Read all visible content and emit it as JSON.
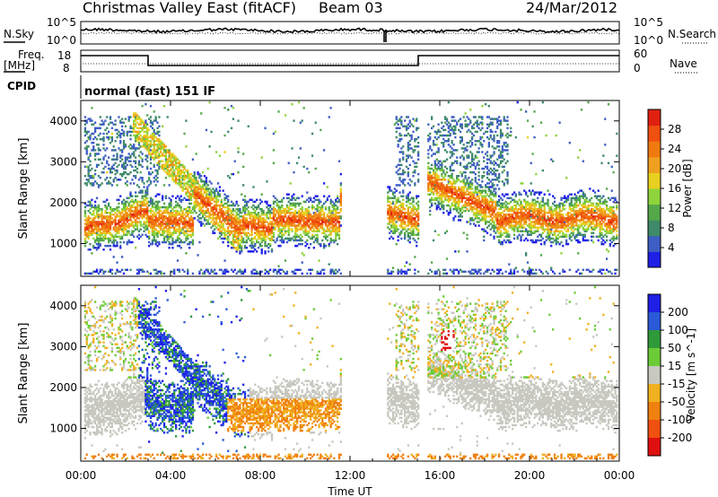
{
  "header": {
    "title": "Christmas Valley East (fitACF)",
    "beam": "Beam 03",
    "date": "24/Mar/2012"
  },
  "noise_panel": {
    "left_label": "N.Sky",
    "left_ticks": [
      "10^5",
      "10^0"
    ],
    "right_ticks": [
      "10^5",
      "10^0"
    ],
    "right_label": "N.Search"
  },
  "freq_panel": {
    "left_label_line1": "Freq.",
    "left_label_line2": "[MHz]",
    "left_ticks": [
      "18",
      "8"
    ],
    "right_ticks": [
      "60",
      "0"
    ],
    "right_label": "Nave"
  },
  "cpid_panel": {
    "label": "CPID",
    "value": "normal (fast) 151 IF"
  },
  "chart_data": [
    {
      "type": "heatmap",
      "name": "power",
      "ylabel": "Slant Range [km]",
      "yticks": [
        1000,
        2000,
        3000,
        4000
      ],
      "ylim": [
        200,
        4500
      ],
      "colorbar": {
        "label": "Power [dB]",
        "tick_labels": [
          "4",
          "8",
          "12",
          "16",
          "20",
          "24",
          "28"
        ],
        "colors": [
          "#1f1fe6",
          "#3e5ec4",
          "#3f8a6a",
          "#55a84a",
          "#8fd43c",
          "#e8d020",
          "#f0a020",
          "#f07a10",
          "#f05010",
          "#e02010"
        ]
      }
    },
    {
      "type": "heatmap",
      "name": "velocity",
      "ylabel": "Slant Range [km]",
      "yticks": [
        1000,
        2000,
        3000,
        4000
      ],
      "ylim": [
        200,
        4500
      ],
      "colorbar": {
        "label": "Velocity [m s^-1]",
        "tick_labels": [
          "200",
          "100",
          "50",
          "15",
          "-15",
          "-50",
          "-100",
          "-200"
        ],
        "colors": [
          "#1f1fe6",
          "#2a5ad8",
          "#2f9a3a",
          "#6ccc36",
          "#c8c8c0",
          "#f0b020",
          "#f08010",
          "#f05010",
          "#e01010"
        ]
      }
    }
  ],
  "x_axis": {
    "label": "Time UT",
    "ticks": [
      "00:00",
      "04:00",
      "08:00",
      "12:00",
      "16:00",
      "20:00",
      "00:00"
    ]
  }
}
